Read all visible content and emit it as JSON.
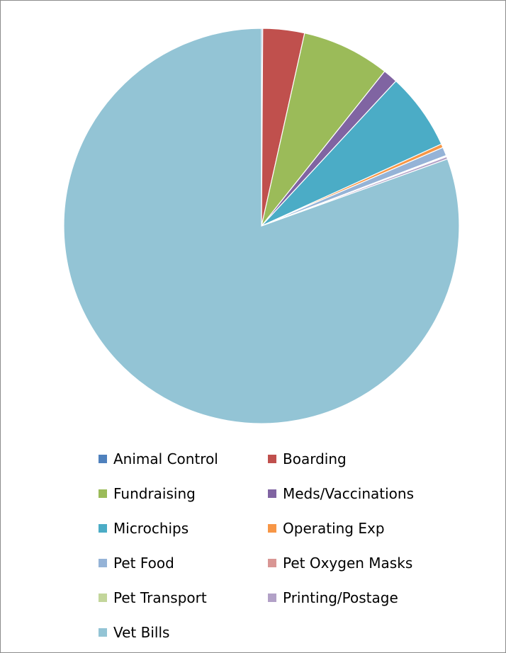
{
  "chart_data": {
    "type": "pie",
    "title": "",
    "start_angle_deg": 0,
    "direction": "clockwise",
    "legend_position": "bottom",
    "categories": [
      "Animal Control",
      "Boarding",
      "Fundraising",
      "Meds/Vaccinations",
      "Microchips",
      "Operating Exp",
      "Pet Food",
      "Pet Oxygen Masks",
      "Pet Transport",
      "Printing/Postage",
      "Vet Bills"
    ],
    "values": [
      0.1,
      3.4,
      7.2,
      1.2,
      6.3,
      0.3,
      0.7,
      0.05,
      0.05,
      0.2,
      80.5
    ],
    "colors": [
      "#4f81bd",
      "#c0504d",
      "#9bbb59",
      "#8064a2",
      "#4bacc6",
      "#f79646",
      "#95b3d7",
      "#d99694",
      "#c3d69b",
      "#b2a1c7",
      "#93c4d5"
    ]
  }
}
